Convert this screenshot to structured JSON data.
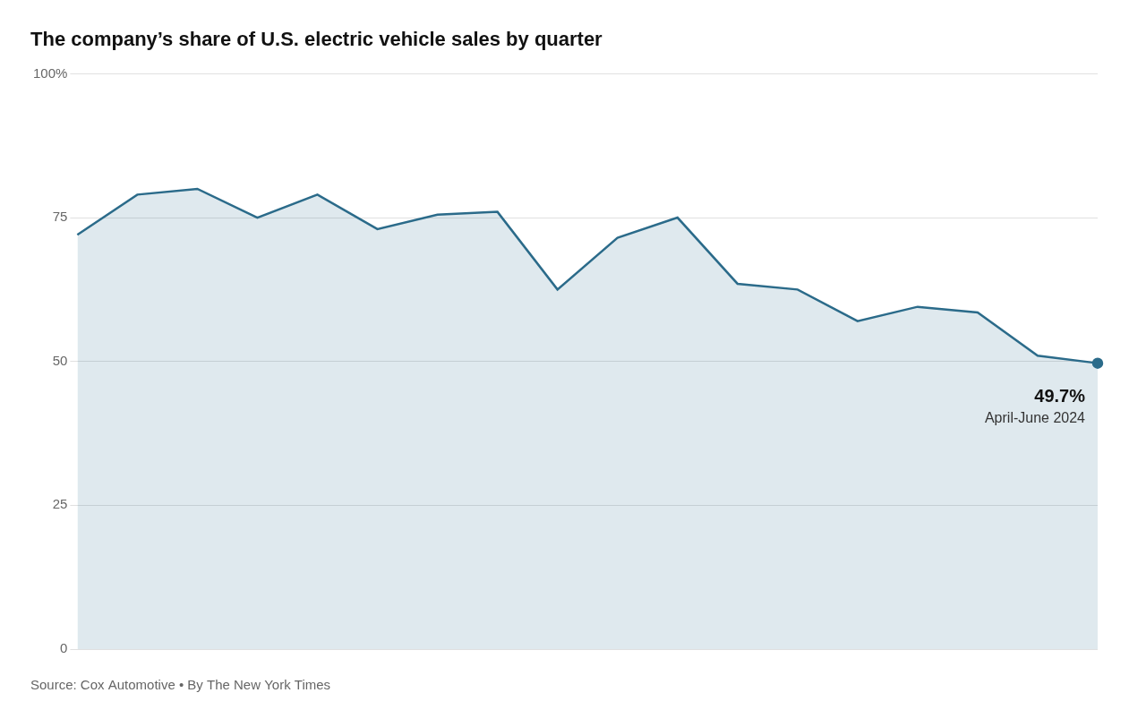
{
  "chart_data": {
    "type": "area",
    "title": "The company’s share of U.S. electric vehicle sales by quarter",
    "categories": [
      null,
      null,
      null,
      null,
      null,
      null,
      null,
      null,
      null,
      null,
      null,
      null,
      null,
      null,
      null,
      null,
      null,
      null
    ],
    "values": [
      72.0,
      79.0,
      80.0,
      75.0,
      79.0,
      73.0,
      75.5,
      76.0,
      62.5,
      71.5,
      75.0,
      63.5,
      62.5,
      57.0,
      59.5,
      58.5,
      51.0,
      49.7
    ],
    "color": "#2b6b8a",
    "ylim": [
      0,
      100
    ],
    "yticks": [
      0,
      25,
      50,
      75,
      {
        "value": 100,
        "label": "100%"
      }
    ],
    "grid": true,
    "tick_labels": "y",
    "annotations": [
      "49.7%",
      "April-June 2024"
    ],
    "footer": "Source: Cox Automotive • By The New York Times"
  }
}
